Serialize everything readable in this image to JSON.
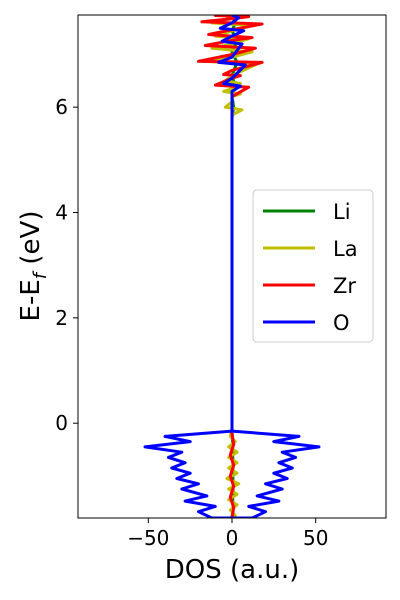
{
  "chart_data": {
    "type": "line",
    "orientation": "vertical-dos",
    "xlabel": "DOS (a.u.)",
    "ylabel_main": "E-E",
    "ylabel_sub": "f",
    "ylabel_unit": " (eV)",
    "xlim": [
      -92,
      92
    ],
    "ylim": [
      -1.8,
      7.75
    ],
    "xticks": [
      -50,
      0,
      50
    ],
    "xtick_labels": [
      "−50",
      "0",
      "50"
    ],
    "yticks": [
      0,
      2,
      4,
      6
    ],
    "ytick_labels": [
      "0",
      "2",
      "4",
      "6"
    ],
    "grid": false,
    "legend_position": "right",
    "series": [
      {
        "name": "Li",
        "color": "#008000",
        "points": [
          [
            0,
            -1.8
          ],
          [
            0.6,
            -1.6
          ],
          [
            0.4,
            -1.4
          ],
          [
            0.7,
            -1.2
          ],
          [
            0.5,
            -1.0
          ],
          [
            0.6,
            -0.8
          ],
          [
            0.4,
            -0.6
          ],
          [
            0.5,
            -0.4
          ],
          [
            0.2,
            -0.25
          ],
          [
            0,
            -0.1
          ],
          [
            0,
            5.8
          ],
          [
            1,
            6.0
          ],
          [
            0,
            6.2
          ],
          [
            2,
            6.4
          ],
          [
            0,
            6.6
          ],
          [
            3,
            6.85
          ],
          [
            0,
            7.05
          ],
          [
            3,
            7.25
          ],
          [
            0,
            7.45
          ],
          [
            2,
            7.6
          ],
          [
            0,
            7.75
          ]
        ]
      },
      {
        "name": "La",
        "color": "#bfbf00",
        "points": [
          [
            0,
            -1.8
          ],
          [
            2,
            -1.75
          ],
          [
            -1,
            -1.65
          ],
          [
            3,
            -1.55
          ],
          [
            -2,
            -1.45
          ],
          [
            3,
            -1.35
          ],
          [
            -2,
            -1.25
          ],
          [
            4,
            -1.15
          ],
          [
            -3,
            -1.05
          ],
          [
            3,
            -0.95
          ],
          [
            -2,
            -0.85
          ],
          [
            3,
            -0.75
          ],
          [
            -2,
            -0.65
          ],
          [
            3,
            -0.55
          ],
          [
            -2,
            -0.45
          ],
          [
            2,
            -0.35
          ],
          [
            -1,
            -0.25
          ],
          [
            0,
            -0.1
          ],
          [
            0,
            5.85
          ],
          [
            6,
            5.95
          ],
          [
            -4,
            6.0
          ],
          [
            0,
            6.1
          ],
          [
            0,
            6.2
          ],
          [
            5,
            6.25
          ],
          [
            -5,
            6.3
          ],
          [
            0,
            6.35
          ],
          [
            5,
            6.45
          ],
          [
            -4,
            6.5
          ],
          [
            0,
            6.6
          ],
          [
            15,
            6.82
          ],
          [
            -18,
            6.87
          ],
          [
            0,
            6.95
          ],
          [
            12,
            7.05
          ],
          [
            -12,
            7.12
          ],
          [
            0,
            7.2
          ],
          [
            10,
            7.3
          ],
          [
            -10,
            7.35
          ],
          [
            0,
            7.45
          ],
          [
            12,
            7.55
          ],
          [
            -12,
            7.6
          ],
          [
            0,
            7.7
          ],
          [
            5,
            7.75
          ]
        ]
      },
      {
        "name": "Zr",
        "color": "#ff0000",
        "points": [
          [
            0,
            -1.8
          ],
          [
            1,
            -1.6
          ],
          [
            -1,
            -1.4
          ],
          [
            1,
            -1.2
          ],
          [
            -1,
            -1.0
          ],
          [
            1,
            -0.8
          ],
          [
            -1,
            -0.6
          ],
          [
            1,
            -0.4
          ],
          [
            0,
            -0.2
          ],
          [
            0,
            6.2
          ],
          [
            10,
            6.38
          ],
          [
            -10,
            6.42
          ],
          [
            0,
            6.55
          ],
          [
            5,
            6.6
          ],
          [
            -5,
            6.62
          ],
          [
            0,
            6.7
          ],
          [
            18,
            6.85
          ],
          [
            -20,
            6.87
          ],
          [
            0,
            7.0
          ],
          [
            14,
            7.12
          ],
          [
            -16,
            7.17
          ],
          [
            0,
            7.27
          ],
          [
            12,
            7.32
          ],
          [
            -14,
            7.38
          ],
          [
            0,
            7.47
          ],
          [
            18,
            7.58
          ],
          [
            -18,
            7.62
          ],
          [
            0,
            7.68
          ],
          [
            10,
            7.72
          ],
          [
            -10,
            7.74
          ],
          [
            0,
            7.75
          ]
        ]
      },
      {
        "name": "O",
        "color": "#0000ff",
        "points": [
          [
            0,
            -0.15
          ],
          [
            40,
            -0.25
          ],
          [
            25,
            -0.35
          ],
          [
            52,
            -0.45
          ],
          [
            30,
            -0.55
          ],
          [
            38,
            -0.65
          ],
          [
            28,
            -0.75
          ],
          [
            36,
            -0.85
          ],
          [
            25,
            -0.95
          ],
          [
            33,
            -1.05
          ],
          [
            20,
            -1.15
          ],
          [
            30,
            -1.25
          ],
          [
            15,
            -1.38
          ],
          [
            28,
            -1.48
          ],
          [
            10,
            -1.58
          ],
          [
            20,
            -1.68
          ],
          [
            12,
            -1.8
          ],
          [
            -12,
            -1.8
          ],
          [
            -20,
            -1.68
          ],
          [
            -10,
            -1.58
          ],
          [
            -28,
            -1.48
          ],
          [
            -15,
            -1.38
          ],
          [
            -30,
            -1.25
          ],
          [
            -20,
            -1.15
          ],
          [
            -33,
            -1.05
          ],
          [
            -25,
            -0.95
          ],
          [
            -36,
            -0.85
          ],
          [
            -28,
            -0.75
          ],
          [
            -38,
            -0.65
          ],
          [
            -30,
            -0.55
          ],
          [
            -52,
            -0.45
          ],
          [
            -25,
            -0.35
          ],
          [
            -40,
            -0.25
          ],
          [
            0,
            -0.15
          ],
          [
            0,
            6.3
          ],
          [
            5,
            6.4
          ],
          [
            -5,
            6.45
          ],
          [
            0,
            6.55
          ],
          [
            8,
            6.8
          ],
          [
            -8,
            6.85
          ],
          [
            0,
            6.95
          ],
          [
            6,
            7.2
          ],
          [
            -6,
            7.25
          ],
          [
            0,
            7.35
          ],
          [
            7,
            7.45
          ],
          [
            -7,
            7.5
          ],
          [
            0,
            7.6
          ],
          [
            4,
            7.7
          ],
          [
            0,
            7.75
          ]
        ]
      }
    ]
  }
}
